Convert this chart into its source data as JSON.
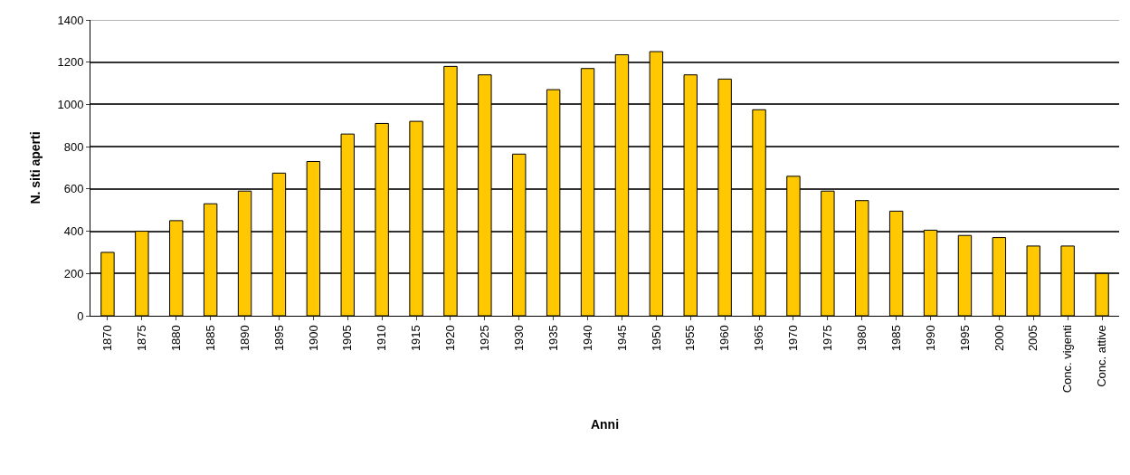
{
  "chart_data": {
    "type": "bar",
    "xlabel": "Anni",
    "ylabel": "N. siti aperti",
    "categories": [
      "1870",
      "1875",
      "1880",
      "1885",
      "1890",
      "1895",
      "1900",
      "1905",
      "1910",
      "1915",
      "1920",
      "1925",
      "1930",
      "1935",
      "1940",
      "1945",
      "1950",
      "1955",
      "1960",
      "1965",
      "1970",
      "1975",
      "1980",
      "1985",
      "1990",
      "1995",
      "2000",
      "2005",
      "Conc. vigenti",
      "Conc. attive"
    ],
    "values": [
      300,
      400,
      450,
      530,
      590,
      675,
      730,
      860,
      910,
      920,
      1180,
      1140,
      765,
      1070,
      1170,
      1235,
      1250,
      1140,
      1120,
      975,
      660,
      590,
      545,
      495,
      405,
      380,
      370,
      330,
      330,
      200
    ],
    "color": "#ffc800",
    "ylim": [
      0,
      1400
    ],
    "yticks": [
      0,
      200,
      400,
      600,
      800,
      1000,
      1200,
      1400
    ],
    "grid": "y"
  }
}
